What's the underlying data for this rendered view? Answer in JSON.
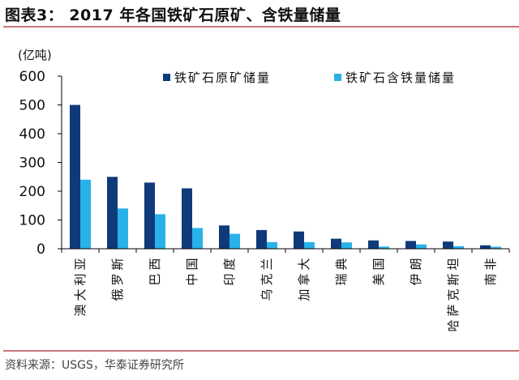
{
  "header": {
    "title": "图表3：  2017 年各国铁矿石原矿、含铁量储量"
  },
  "footer": {
    "source": "资料来源：USGS，华泰证券研究所"
  },
  "colors": {
    "series_dark": "#0f3a7a",
    "series_light": "#29b1ea",
    "rule": "#c7767a",
    "axis": "#000000"
  },
  "chart_data": {
    "type": "bar",
    "title": "2017 年各国铁矿石原矿、含铁量储量",
    "ylabel": "(亿吨)",
    "xlabel": "",
    "ylim": [
      0,
      600
    ],
    "yticks": [
      0,
      100,
      200,
      300,
      400,
      500,
      600
    ],
    "grid": false,
    "legend_position": "top-right",
    "categories": [
      "澳大利亚",
      "俄罗斯",
      "巴西",
      "中国",
      "印度",
      "乌克兰",
      "加拿大",
      "瑞典",
      "美国",
      "伊朗",
      "哈萨克斯坦",
      "南非"
    ],
    "series": [
      {
        "name": "铁矿石原矿储量",
        "color": "#0f3a7a",
        "values": [
          500,
          250,
          230,
          210,
          81,
          65,
          60,
          35,
          29,
          27,
          25,
          12
        ]
      },
      {
        "name": "铁矿石含铁量储量",
        "color": "#29b1ea",
        "values": [
          240,
          140,
          120,
          72,
          52,
          23,
          23,
          22,
          7.6,
          15,
          9,
          7
        ]
      }
    ]
  }
}
